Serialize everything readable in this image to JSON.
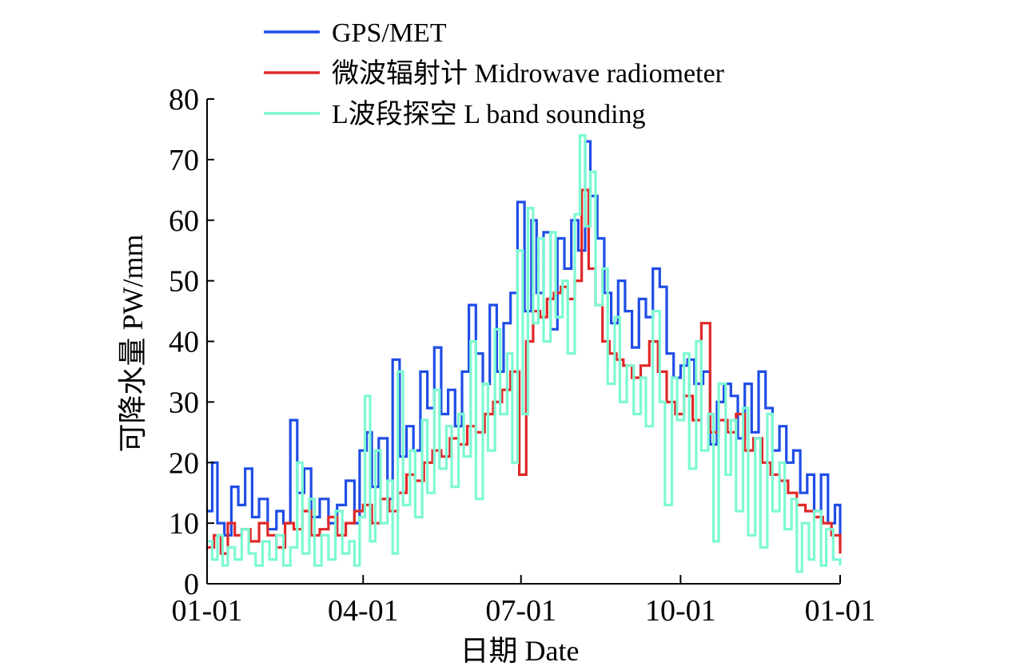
{
  "chart_data": {
    "type": "line",
    "title": "",
    "xlabel": "日期 Date",
    "ylabel": "可降水量 PW/mm",
    "ylim": [
      0,
      80
    ],
    "yticks": [
      "0",
      "10",
      "20",
      "30",
      "40",
      "50",
      "60",
      "70",
      "80"
    ],
    "xlim": [
      0,
      365
    ],
    "xticks": [
      {
        "label": "01-01",
        "day": 0
      },
      {
        "label": "04-01",
        "day": 90
      },
      {
        "label": "07-01",
        "day": 181
      },
      {
        "label": "10-01",
        "day": 273
      },
      {
        "label": "01-01",
        "day": 365
      }
    ],
    "legend_position": "top-left",
    "series": [
      {
        "name": "GPS/MET",
        "color": "#1f4de6",
        "points": [
          [
            0,
            12
          ],
          [
            3,
            20
          ],
          [
            6,
            10
          ],
          [
            10,
            8
          ],
          [
            14,
            16
          ],
          [
            18,
            13
          ],
          [
            22,
            19
          ],
          [
            26,
            11
          ],
          [
            30,
            14
          ],
          [
            35,
            9
          ],
          [
            40,
            12
          ],
          [
            44,
            10
          ],
          [
            48,
            27
          ],
          [
            52,
            15
          ],
          [
            56,
            19
          ],
          [
            60,
            11
          ],
          [
            65,
            14
          ],
          [
            70,
            10
          ],
          [
            75,
            13
          ],
          [
            80,
            17
          ],
          [
            85,
            10
          ],
          [
            88,
            22
          ],
          [
            92,
            25
          ],
          [
            95,
            16
          ],
          [
            99,
            24
          ],
          [
            104,
            14
          ],
          [
            107,
            37
          ],
          [
            111,
            21
          ],
          [
            115,
            26
          ],
          [
            119,
            22
          ],
          [
            123,
            35
          ],
          [
            127,
            29
          ],
          [
            131,
            39
          ],
          [
            135,
            28
          ],
          [
            139,
            32
          ],
          [
            143,
            26
          ],
          [
            147,
            35
          ],
          [
            151,
            46
          ],
          [
            155,
            38
          ],
          [
            159,
            33
          ],
          [
            163,
            46
          ],
          [
            167,
            35
          ],
          [
            171,
            43
          ],
          [
            175,
            48
          ],
          [
            179,
            63
          ],
          [
            183,
            45
          ],
          [
            187,
            60
          ],
          [
            190,
            48
          ],
          [
            194,
            58
          ],
          [
            198,
            42
          ],
          [
            202,
            57
          ],
          [
            206,
            52
          ],
          [
            210,
            60
          ],
          [
            214,
            55
          ],
          [
            218,
            73
          ],
          [
            221,
            64
          ],
          [
            225,
            57
          ],
          [
            229,
            48
          ],
          [
            233,
            43
          ],
          [
            237,
            50
          ],
          [
            241,
            45
          ],
          [
            245,
            39
          ],
          [
            249,
            47
          ],
          [
            253,
            44
          ],
          [
            257,
            52
          ],
          [
            261,
            49
          ],
          [
            265,
            38
          ],
          [
            269,
            34
          ],
          [
            273,
            36
          ],
          [
            277,
            37
          ],
          [
            281,
            33
          ],
          [
            286,
            35
          ],
          [
            290,
            23
          ],
          [
            294,
            30
          ],
          [
            298,
            33
          ],
          [
            302,
            31
          ],
          [
            306,
            24
          ],
          [
            310,
            33
          ],
          [
            314,
            25
          ],
          [
            318,
            35
          ],
          [
            322,
            29
          ],
          [
            326,
            22
          ],
          [
            330,
            26
          ],
          [
            334,
            20
          ],
          [
            338,
            22
          ],
          [
            342,
            15
          ],
          [
            346,
            18
          ],
          [
            350,
            12
          ],
          [
            354,
            18
          ],
          [
            358,
            10
          ],
          [
            362,
            13
          ],
          [
            365,
            6
          ]
        ]
      },
      {
        "name": "微波辐射计 Midrowave radiometer",
        "color": "#e02828",
        "points": [
          [
            0,
            6
          ],
          [
            4,
            8
          ],
          [
            8,
            5
          ],
          [
            12,
            10
          ],
          [
            16,
            8
          ],
          [
            20,
            9
          ],
          [
            25,
            7
          ],
          [
            30,
            10
          ],
          [
            35,
            8
          ],
          [
            40,
            6
          ],
          [
            45,
            10
          ],
          [
            50,
            9
          ],
          [
            55,
            12
          ],
          [
            60,
            8
          ],
          [
            65,
            9
          ],
          [
            70,
            11
          ],
          [
            75,
            8
          ],
          [
            80,
            10
          ],
          [
            85,
            12
          ],
          [
            90,
            13
          ],
          [
            95,
            10
          ],
          [
            100,
            14
          ],
          [
            105,
            12
          ],
          [
            110,
            15
          ],
          [
            115,
            18
          ],
          [
            120,
            17
          ],
          [
            125,
            20
          ],
          [
            130,
            22
          ],
          [
            135,
            21
          ],
          [
            140,
            24
          ],
          [
            145,
            23
          ],
          [
            150,
            26
          ],
          [
            155,
            25
          ],
          [
            160,
            28
          ],
          [
            165,
            30
          ],
          [
            170,
            32
          ],
          [
            175,
            35
          ],
          [
            180,
            18
          ],
          [
            184,
            40
          ],
          [
            188,
            45
          ],
          [
            192,
            44
          ],
          [
            196,
            47
          ],
          [
            200,
            48
          ],
          [
            204,
            49
          ],
          [
            208,
            47
          ],
          [
            212,
            50
          ],
          [
            216,
            65
          ],
          [
            220,
            52
          ],
          [
            224,
            46
          ],
          [
            228,
            40
          ],
          [
            232,
            38
          ],
          [
            236,
            37
          ],
          [
            240,
            36
          ],
          [
            245,
            34
          ],
          [
            250,
            36
          ],
          [
            255,
            40
          ],
          [
            260,
            35
          ],
          [
            265,
            30
          ],
          [
            270,
            28
          ],
          [
            275,
            31
          ],
          [
            280,
            27
          ],
          [
            285,
            43
          ],
          [
            290,
            25
          ],
          [
            295,
            27
          ],
          [
            300,
            25
          ],
          [
            305,
            28
          ],
          [
            310,
            22
          ],
          [
            315,
            24
          ],
          [
            320,
            20
          ],
          [
            325,
            18
          ],
          [
            330,
            17
          ],
          [
            335,
            15
          ],
          [
            340,
            13
          ],
          [
            345,
            12
          ],
          [
            350,
            11
          ],
          [
            355,
            10
          ],
          [
            360,
            8
          ],
          [
            365,
            5
          ]
        ]
      },
      {
        "name": "L波段探空 L band sounding",
        "color": "#7dfad2",
        "points": [
          [
            0,
            7
          ],
          [
            3,
            4
          ],
          [
            6,
            8
          ],
          [
            9,
            3
          ],
          [
            12,
            6
          ],
          [
            16,
            4
          ],
          [
            20,
            9
          ],
          [
            24,
            5
          ],
          [
            28,
            3
          ],
          [
            32,
            7
          ],
          [
            36,
            4
          ],
          [
            40,
            8
          ],
          [
            44,
            3
          ],
          [
            48,
            6
          ],
          [
            52,
            20
          ],
          [
            55,
            5
          ],
          [
            59,
            14
          ],
          [
            62,
            3
          ],
          [
            66,
            8
          ],
          [
            70,
            4
          ],
          [
            74,
            12
          ],
          [
            78,
            5
          ],
          [
            82,
            7
          ],
          [
            85,
            3
          ],
          [
            88,
            11
          ],
          [
            91,
            31
          ],
          [
            94,
            7
          ],
          [
            97,
            22
          ],
          [
            100,
            10
          ],
          [
            104,
            17
          ],
          [
            107,
            5
          ],
          [
            110,
            35
          ],
          [
            113,
            13
          ],
          [
            117,
            22
          ],
          [
            120,
            11
          ],
          [
            124,
            27
          ],
          [
            127,
            15
          ],
          [
            131,
            32
          ],
          [
            134,
            19
          ],
          [
            138,
            26
          ],
          [
            141,
            16
          ],
          [
            145,
            28
          ],
          [
            148,
            21
          ],
          [
            152,
            40
          ],
          [
            155,
            14
          ],
          [
            159,
            33
          ],
          [
            162,
            22
          ],
          [
            166,
            42
          ],
          [
            169,
            28
          ],
          [
            173,
            38
          ],
          [
            176,
            20
          ],
          [
            179,
            55
          ],
          [
            182,
            28
          ],
          [
            185,
            62
          ],
          [
            188,
            43
          ],
          [
            191,
            57
          ],
          [
            194,
            40
          ],
          [
            198,
            58
          ],
          [
            201,
            44
          ],
          [
            205,
            50
          ],
          [
            208,
            38
          ],
          [
            212,
            61
          ],
          [
            215,
            74
          ],
          [
            218,
            59
          ],
          [
            221,
            68
          ],
          [
            224,
            46
          ],
          [
            228,
            52
          ],
          [
            231,
            33
          ],
          [
            235,
            44
          ],
          [
            238,
            30
          ],
          [
            242,
            36
          ],
          [
            246,
            28
          ],
          [
            250,
            34
          ],
          [
            253,
            26
          ],
          [
            257,
            45
          ],
          [
            261,
            30
          ],
          [
            264,
            13
          ],
          [
            268,
            34
          ],
          [
            271,
            27
          ],
          [
            275,
            38
          ],
          [
            278,
            19
          ],
          [
            282,
            40
          ],
          [
            285,
            22
          ],
          [
            289,
            28
          ],
          [
            292,
            7
          ],
          [
            295,
            33
          ],
          [
            299,
            18
          ],
          [
            302,
            27
          ],
          [
            305,
            12
          ],
          [
            309,
            29
          ],
          [
            312,
            8
          ],
          [
            316,
            24
          ],
          [
            319,
            6
          ],
          [
            323,
            28
          ],
          [
            326,
            12
          ],
          [
            330,
            20
          ],
          [
            333,
            9
          ],
          [
            337,
            14
          ],
          [
            340,
            2
          ],
          [
            343,
            10
          ],
          [
            347,
            4
          ],
          [
            350,
            12
          ],
          [
            354,
            3
          ],
          [
            357,
            9
          ],
          [
            361,
            4
          ],
          [
            365,
            3
          ]
        ]
      }
    ]
  }
}
